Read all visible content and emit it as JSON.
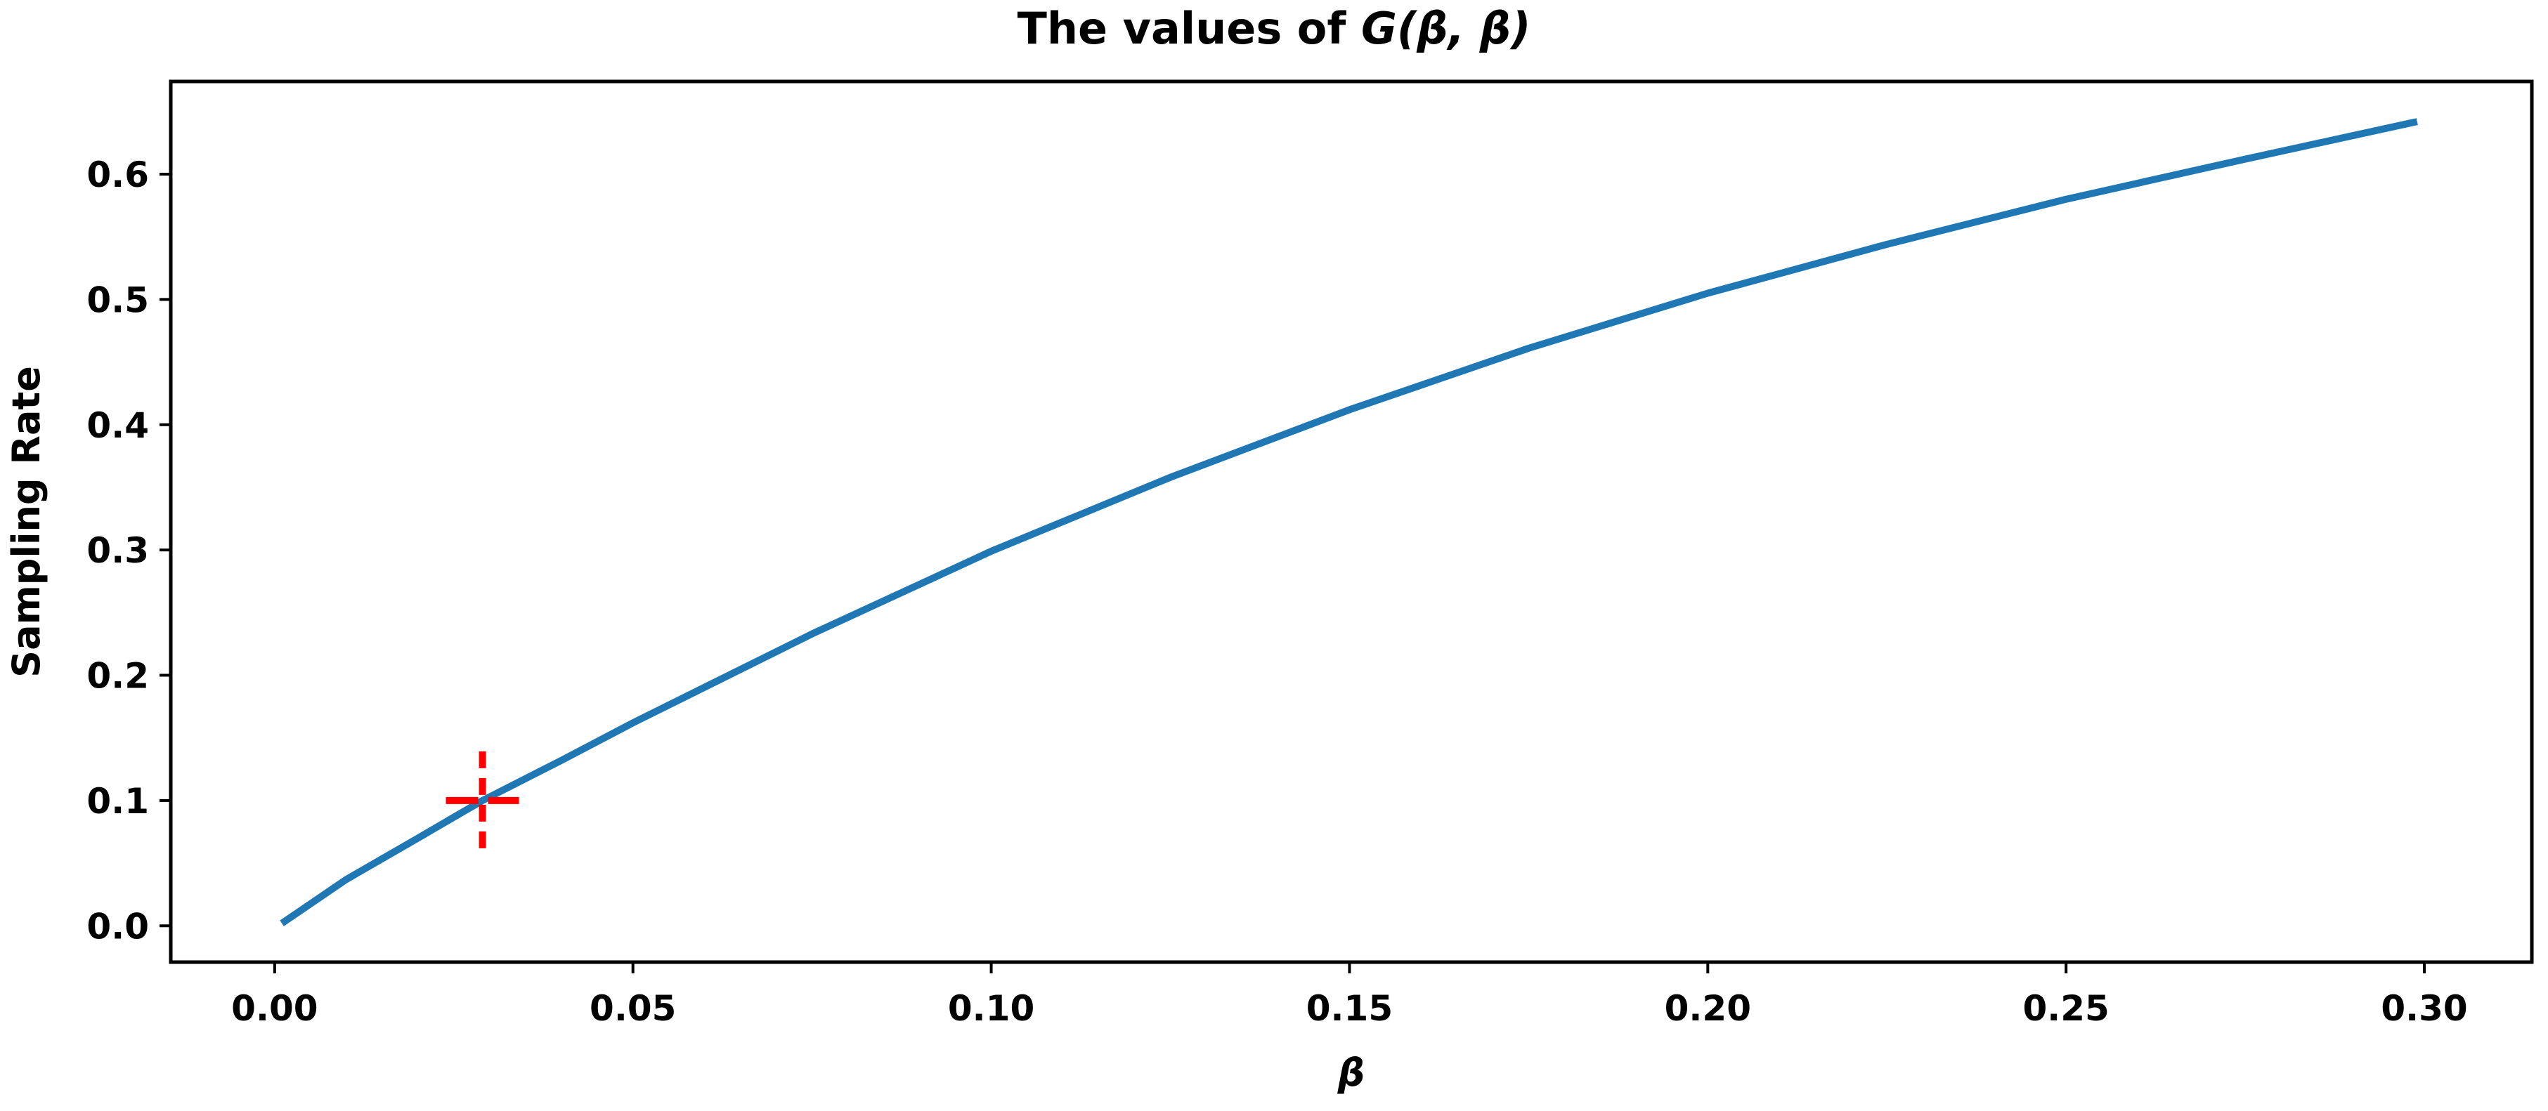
{
  "chart_data": {
    "type": "line",
    "title_prefix": "The values of ",
    "title_math": "G(β, β)",
    "xlabel": "β",
    "ylabel": "Sampling Rate",
    "xlim": [
      -0.0145,
      0.315
    ],
    "ylim": [
      -0.029,
      0.674
    ],
    "xticks": [
      0.0,
      0.05,
      0.1,
      0.15,
      0.2,
      0.25,
      0.3
    ],
    "xtick_labels": [
      "0.00",
      "0.05",
      "0.10",
      "0.15",
      "0.20",
      "0.25",
      "0.30"
    ],
    "yticks": [
      0.0,
      0.1,
      0.2,
      0.3,
      0.4,
      0.5,
      0.6
    ],
    "ytick_labels": [
      "0.0",
      "0.1",
      "0.2",
      "0.3",
      "0.4",
      "0.5",
      "0.6"
    ],
    "grid": false,
    "series": [
      {
        "color": "#1f77b4",
        "x": [
          0.001,
          0.01,
          0.02,
          0.029,
          0.04,
          0.05,
          0.075,
          0.1,
          0.125,
          0.15,
          0.175,
          0.2,
          0.225,
          0.25,
          0.275,
          0.299
        ],
        "y": [
          0.002,
          0.037,
          0.07,
          0.1,
          0.132,
          0.162,
          0.233,
          0.299,
          0.358,
          0.412,
          0.461,
          0.505,
          0.544,
          0.58,
          0.612,
          0.642
        ]
      }
    ],
    "marker": {
      "x": 0.029,
      "y": 0.1,
      "style": "dashed-cross",
      "color": "#ff0000"
    }
  }
}
